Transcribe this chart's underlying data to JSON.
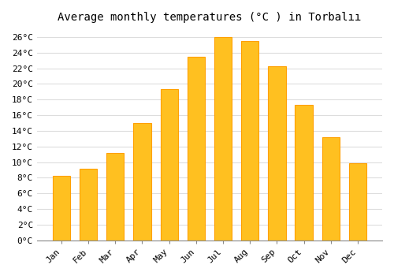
{
  "title": "Average monthly temperatures (°C ) in Torbalıı",
  "months": [
    "Jan",
    "Feb",
    "Mar",
    "Apr",
    "May",
    "Jun",
    "Jul",
    "Aug",
    "Sep",
    "Oct",
    "Nov",
    "Dec"
  ],
  "values": [
    8.2,
    9.1,
    11.2,
    15.0,
    19.3,
    23.5,
    26.0,
    25.5,
    22.3,
    17.3,
    13.2,
    9.9
  ],
  "bar_color_face": "#FFC020",
  "bar_color_edge": "#FFA000",
  "background_color": "#FFFFFF",
  "grid_color": "#DDDDDD",
  "ylim": [
    0,
    27
  ],
  "ytick_step": 2,
  "title_fontsize": 10,
  "tick_fontsize": 8,
  "font_family": "monospace"
}
